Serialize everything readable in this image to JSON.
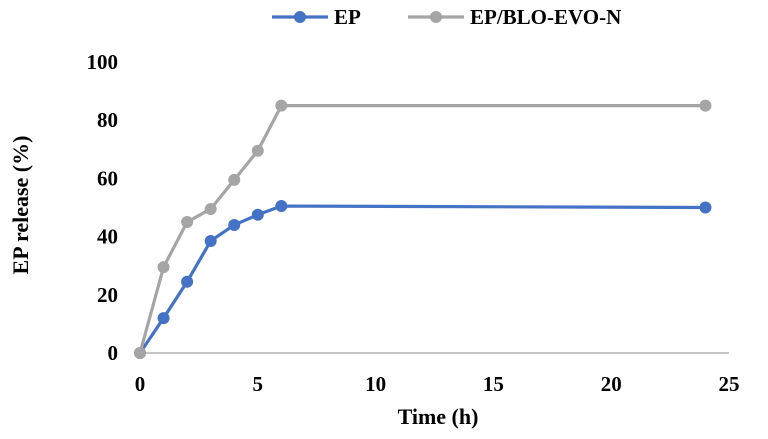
{
  "chart_data": {
    "type": "line",
    "title": "",
    "xlabel": "Time (h)",
    "ylabel": "EP release (%)",
    "xlim": [
      0,
      25
    ],
    "ylim": [
      0,
      100
    ],
    "x_ticks": [
      0,
      5,
      10,
      15,
      20,
      25
    ],
    "y_ticks": [
      0,
      20,
      40,
      60,
      80,
      100
    ],
    "x_tick_labels": [
      "0",
      "5",
      "10",
      "15",
      "20",
      "25"
    ],
    "y_tick_labels": [
      "0",
      "20",
      "40",
      "60",
      "80",
      "100"
    ],
    "grid": false,
    "legend_position": "top",
    "series": [
      {
        "name": "EP",
        "color": "#4472C4",
        "marker": "circle",
        "x": [
          0,
          1,
          2,
          3,
          4,
          5,
          6,
          24
        ],
        "y": [
          0,
          12,
          24.5,
          38.5,
          44,
          47.5,
          50.5,
          50
        ]
      },
      {
        "name": "EP/BLO-EVO-N",
        "color": "#A5A5A5",
        "marker": "circle",
        "x": [
          0,
          1,
          2,
          3,
          4,
          5,
          6,
          24
        ],
        "y": [
          0,
          29.5,
          45,
          49.5,
          59.5,
          69.5,
          85,
          85
        ]
      }
    ]
  }
}
